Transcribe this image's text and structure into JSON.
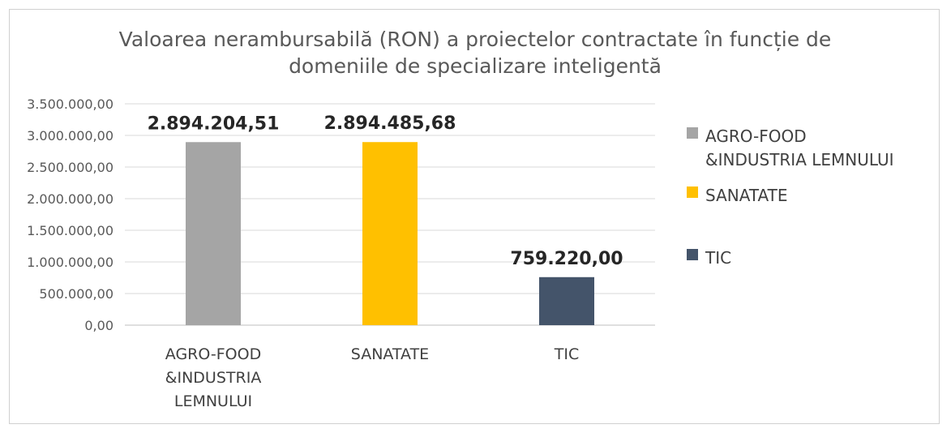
{
  "chart_data": {
    "type": "bar",
    "title_lines": [
      "Valoarea nerambursabilă (RON) a proiectelor contractate în funcție de",
      "domeniile de specializare inteligentă"
    ],
    "categories": [
      "AGRO-FOOD &INDUSTRIA LEMNULUI",
      "SANATATE",
      "TIC"
    ],
    "category_label_lines": [
      [
        "AGRO-FOOD",
        "&INDUSTRIA",
        "LEMNULUI"
      ],
      [
        "SANATATE"
      ],
      [
        "TIC"
      ]
    ],
    "values": [
      2894204.51,
      2894485.68,
      759220.0
    ],
    "data_labels": [
      "2.894.204,51",
      "2.894.485,68",
      "759.220,00"
    ],
    "colors": [
      "#a5a5a5",
      "#ffc000",
      "#44546a"
    ],
    "ylim": [
      0,
      3500000
    ],
    "yticks": [
      0,
      500000,
      1000000,
      1500000,
      2000000,
      2500000,
      3000000,
      3500000
    ],
    "ytick_labels": [
      "0,00",
      "500.000,00",
      "1.000.000,00",
      "1.500.000,00",
      "2.000.000,00",
      "2.500.000,00",
      "3.000.000,00",
      "3.500.000,00"
    ],
    "grid": true,
    "legend_position": "right",
    "legend": [
      {
        "label_lines": [
          "AGRO-FOOD",
          "&INDUSTRIA LEMNULUI"
        ],
        "color": "#a5a5a5"
      },
      {
        "label_lines": [
          "SANATATE"
        ],
        "color": "#ffc000"
      },
      {
        "label_lines": [
          "TIC"
        ],
        "color": "#44546a"
      }
    ]
  }
}
